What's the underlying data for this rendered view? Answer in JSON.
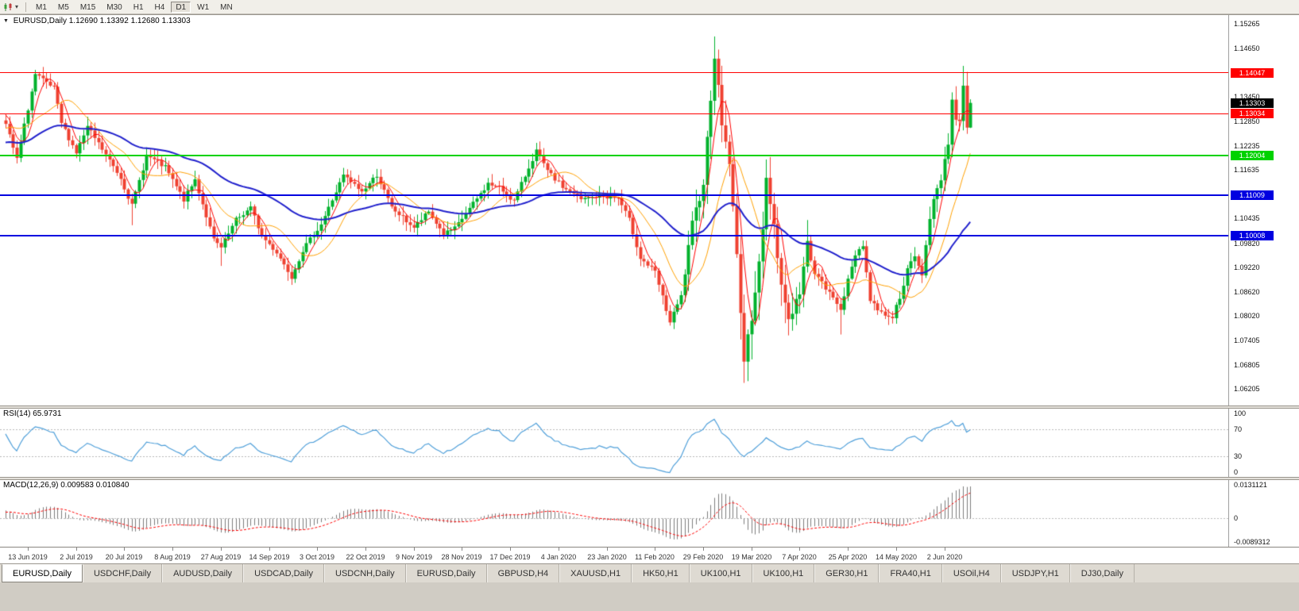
{
  "toolbar": {
    "chart_type_icon": "candlestick-chart-icon",
    "timeframes": [
      "M1",
      "M5",
      "M15",
      "M30",
      "H1",
      "H4",
      "D1",
      "W1",
      "MN"
    ],
    "active_timeframe": "D1"
  },
  "chart_data": {
    "type": "candlestick",
    "symbol": "EURUSD",
    "timeframe": "Daily",
    "main": {
      "symbol_label": "EURUSD,Daily",
      "ohlc_text": "1.12690 1.13392 1.12680 1.13303",
      "open": 1.1269,
      "high": 1.13392,
      "low": 1.1268,
      "close": 1.13303,
      "price_top": 1.1548,
      "price_bottom": 1.058,
      "lead_bars": 60,
      "visible_bars": 261,
      "bar_left": 7,
      "bar_spacing": 4.67,
      "seed": 7,
      "up_color": "#00b22c",
      "down_color": "#ef4130",
      "ma": [
        {
          "period": 5,
          "type": "sma",
          "color": "#ff0000",
          "width": 1
        },
        {
          "period": 13,
          "type": "sma",
          "color": "#ffa000",
          "width": 1
        },
        {
          "period": 50,
          "type": "ema",
          "color": "#2020cc",
          "width": 2
        }
      ],
      "y_ticks": [
        1.15265,
        1.1465,
        1.1345,
        1.1285,
        1.12235,
        1.11635,
        1.10435,
        1.0982,
        1.0922,
        1.0862,
        1.0802,
        1.07405,
        1.06805,
        1.06205
      ],
      "hlines": [
        {
          "price": 1.14047,
          "label": "1.14047",
          "color": "#ff0000",
          "width": 1
        },
        {
          "price": 1.13034,
          "label": "1.13034",
          "color": "#ff0000",
          "width": 1
        },
        {
          "price": 1.12004,
          "label": "1.12004",
          "color": "#00d200",
          "width": 2
        },
        {
          "price": 1.11009,
          "label": "1.11009",
          "color": "#0000e0",
          "width": 2
        },
        {
          "price": 1.10008,
          "label": "1.10008",
          "color": "#0000e0",
          "width": 2
        }
      ],
      "price_tag": {
        "label": "1.13303",
        "price": 1.13303,
        "bg": "#000000"
      },
      "close_keypoints": [
        [
          -60,
          1.13
        ],
        [
          -45,
          1.1215
        ],
        [
          -30,
          1.116
        ],
        [
          -15,
          1.1185
        ],
        [
          -8,
          1.1245
        ],
        [
          -3,
          1.1325
        ],
        [
          0,
          1.1276
        ],
        [
          3,
          1.119
        ],
        [
          8,
          1.14
        ],
        [
          13,
          1.1365
        ],
        [
          15,
          1.128
        ],
        [
          19,
          1.1207
        ],
        [
          22,
          1.127
        ],
        [
          26,
          1.1215
        ],
        [
          31,
          1.1145
        ],
        [
          34,
          1.1075
        ],
        [
          38,
          1.12
        ],
        [
          43,
          1.117
        ],
        [
          48,
          1.109
        ],
        [
          51,
          1.114
        ],
        [
          56,
          1.099
        ],
        [
          58,
          1.097
        ],
        [
          62,
          1.104
        ],
        [
          66,
          1.107
        ],
        [
          69,
          1.1
        ],
        [
          73,
          1.096
        ],
        [
          77,
          1.09
        ],
        [
          80,
          1.0965
        ],
        [
          85,
          1.103
        ],
        [
          91,
          1.115
        ],
        [
          96,
          1.111
        ],
        [
          100,
          1.1152
        ],
        [
          104,
          1.107
        ],
        [
          110,
          1.1021
        ],
        [
          114,
          1.106
        ],
        [
          118,
          1.1005
        ],
        [
          121,
          1.1018
        ],
        [
          126,
          1.108
        ],
        [
          130,
          1.113
        ],
        [
          133,
          1.112
        ],
        [
          137,
          1.1087
        ],
        [
          143,
          1.1212
        ],
        [
          146,
          1.116
        ],
        [
          150,
          1.1122
        ],
        [
          155,
          1.109
        ],
        [
          160,
          1.11
        ],
        [
          165,
          1.1094
        ],
        [
          168,
          1.104
        ],
        [
          171,
          1.0946
        ],
        [
          175,
          1.091
        ],
        [
          179,
          1.0786
        ],
        [
          182,
          1.085
        ],
        [
          185,
          1.1027
        ],
        [
          188,
          1.1135
        ],
        [
          191,
          1.145
        ],
        [
          193,
          1.128
        ],
        [
          195,
          1.1184
        ],
        [
          197,
          1.095
        ],
        [
          199,
          1.069
        ],
        [
          201,
          1.08
        ],
        [
          204,
          1.101
        ],
        [
          205,
          1.114
        ],
        [
          207,
          1.103
        ],
        [
          209,
          1.088
        ],
        [
          211,
          1.0793
        ],
        [
          214,
          1.086
        ],
        [
          216,
          1.098
        ],
        [
          218,
          1.091
        ],
        [
          221,
          1.087
        ],
        [
          225,
          1.0822
        ],
        [
          229,
          1.0955
        ],
        [
          231,
          1.098
        ],
        [
          233,
          1.084
        ],
        [
          236,
          1.081
        ],
        [
          239,
          1.08
        ],
        [
          241,
          1.085
        ],
        [
          243,
          1.0915
        ],
        [
          245,
          1.095
        ],
        [
          247,
          1.09
        ],
        [
          248,
          1.0984
        ],
        [
          250,
          1.11
        ],
        [
          252,
          1.1134
        ],
        [
          254,
          1.1235
        ],
        [
          255,
          1.1337
        ],
        [
          256,
          1.1291
        ],
        [
          257,
          1.1294
        ],
        [
          258,
          1.1373
        ],
        [
          259,
          1.1269
        ],
        [
          260,
          1.13303
        ]
      ],
      "overrides": [
        {
          "b": 8,
          "h": 1.1412
        },
        {
          "b": 34,
          "l": 1.1027
        },
        {
          "b": 58,
          "l": 1.0926
        },
        {
          "b": 77,
          "l": 1.0879
        },
        {
          "b": 179,
          "l": 1.0778
        },
        {
          "b": 191,
          "h": 1.1495
        },
        {
          "b": 199,
          "l": 1.0636
        },
        {
          "b": 225,
          "l": 1.0756
        },
        {
          "b": 258,
          "h": 1.1422
        },
        {
          "b": 260,
          "h": 1.13392,
          "l": 1.1268
        }
      ],
      "vol_zones": [
        [
          183,
          216,
          2.4
        ],
        [
          193,
          203,
          3.0
        ],
        [
          248,
          260,
          1.6
        ]
      ]
    },
    "rsi": {
      "header": "RSI(14) 65.9731",
      "period": 14,
      "current": "65.9731",
      "color": "#4f9fd9",
      "levels": [
        {
          "label": "100",
          "value": 100
        },
        {
          "label": "70",
          "value": 70
        },
        {
          "label": "30",
          "value": 30
        },
        {
          "label": "0",
          "value": 0
        }
      ],
      "level_lines": [
        70,
        30
      ]
    },
    "macd": {
      "header": "MACD(12,26,9) 0.009583 0.010840",
      "fast": 12,
      "slow": 26,
      "signal": 9,
      "main_value": "0.009583",
      "signal_value": "0.010840",
      "histogram_color": "#7d7d7d",
      "signal_color": "#ff0000",
      "scale_max": 0.0131121,
      "scale_min": -0.0089312,
      "axis": [
        {
          "label": "0.0131121",
          "value": 0.0131121
        },
        {
          "label": "0",
          "value": 0
        },
        {
          "label": "-0.0089312",
          "value": -0.0089312
        }
      ]
    },
    "x_axis": {
      "first_label_bar": 6,
      "label_step_bars": 13,
      "labels": [
        "13 Jun 2019",
        "2 Jul 2019",
        "20 Jul 2019",
        "8 Aug 2019",
        "27 Aug 2019",
        "14 Sep 2019",
        "3 Oct 2019",
        "22 Oct 2019",
        "9 Nov 2019",
        "28 Nov 2019",
        "17 Dec 2019",
        "4 Jan 2020",
        "23 Jan 2020",
        "11 Feb 2020",
        "29 Feb 2020",
        "19 Mar 2020",
        "7 Apr 2020",
        "25 Apr 2020",
        "14 May 2020",
        "2 Jun 2020"
      ]
    }
  },
  "tabs": {
    "active_index": 0,
    "items": [
      "EURUSD,Daily",
      "USDCHF,Daily",
      "AUDUSD,Daily",
      "USDCAD,Daily",
      "USDCNH,Daily",
      "EURUSD,Daily",
      "GBPUSD,H4",
      "XAUUSD,H1",
      "HK50,H1",
      "UK100,H1",
      "UK100,H1",
      "GER30,H1",
      "FRA40,H1",
      "USOil,H4",
      "USDJPY,H1",
      "DJ30,Daily"
    ]
  }
}
